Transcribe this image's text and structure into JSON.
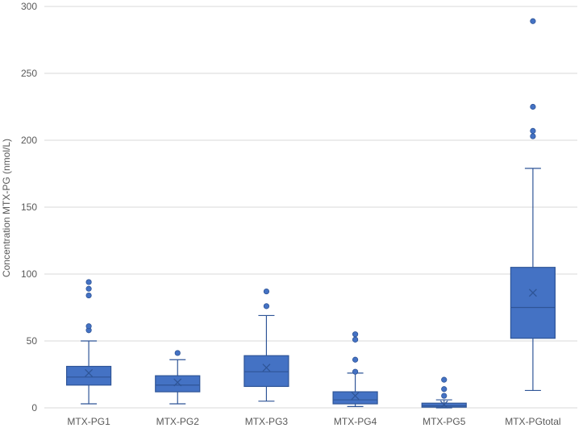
{
  "chart_data": {
    "type": "boxplot",
    "ylabel": "Concentration MTX-PG (nmol/L)",
    "ylim": [
      0,
      300
    ],
    "yticks": [
      0,
      50,
      100,
      150,
      200,
      250,
      300
    ],
    "grid": true,
    "color": "#4472C4",
    "edge_color": "#2F5597",
    "categories": [
      "MTX-PG1",
      "MTX-PG2",
      "MTX-PG3",
      "MTX-PG4",
      "MTX-PG5",
      "MTX-PGtotal"
    ],
    "boxes": [
      {
        "category": "MTX-PG1",
        "whisker_low": 3,
        "q1": 17,
        "median": 23,
        "q3": 31,
        "whisker_high": 50,
        "mean": 26,
        "outliers": [
          58,
          61,
          84,
          89,
          94
        ]
      },
      {
        "category": "MTX-PG2",
        "whisker_low": 3,
        "q1": 12,
        "median": 17,
        "q3": 24,
        "whisker_high": 36,
        "mean": 19,
        "outliers": [
          41
        ]
      },
      {
        "category": "MTX-PG3",
        "whisker_low": 5,
        "q1": 16,
        "median": 27,
        "q3": 39,
        "whisker_high": 69,
        "mean": 30,
        "outliers": [
          76,
          87
        ]
      },
      {
        "category": "MTX-PG4",
        "whisker_low": 1,
        "q1": 3,
        "median": 6,
        "q3": 12,
        "whisker_high": 26,
        "mean": 9,
        "outliers": [
          27,
          36,
          51,
          55
        ]
      },
      {
        "category": "MTX-PG5",
        "whisker_low": 0,
        "q1": 0.5,
        "median": 1.5,
        "q3": 3.5,
        "whisker_high": 6,
        "mean": 2.5,
        "outliers": [
          9,
          14,
          21
        ]
      },
      {
        "category": "MTX-PGtotal",
        "whisker_low": 13,
        "q1": 52,
        "median": 75,
        "q3": 105,
        "whisker_high": 179,
        "mean": 86,
        "outliers": [
          203,
          207,
          225,
          289
        ]
      }
    ]
  }
}
